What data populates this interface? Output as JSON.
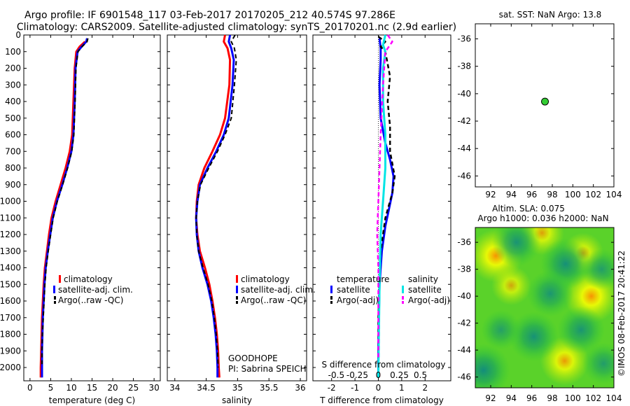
{
  "header": {
    "title_line1": "Argo profile: IF 6901548_117 03-Feb-2017 20170205_212 40.574S 97.286E",
    "title_line2": "Climatology: CARS2009. Satellite-adjusted climatology: synTS_20170201.nc (2.9d earlier)"
  },
  "colors": {
    "climatology": "#ff0000",
    "satellite": "#0000ff",
    "argo": "#000000",
    "sat_salinity": "#00e5e5",
    "argo_salinity_adj": "#ff00ff",
    "float_marker": "#33cc33"
  },
  "legend": {
    "climatology": "climatology",
    "satellite_adj": "satellite-adj. clim.",
    "argo_raw": "Argo(..raw -QC)",
    "temperature_head": "temperature",
    "salinity_head": "salinity",
    "satellite": "satellite",
    "argo_adj": "Argo(-adj)"
  },
  "annotations": {
    "project": "GOODHOPE",
    "pi": "PI: Sabrina SPEICH",
    "s_diff_label": "S difference from climatology",
    "sst_title": "sat. SST: NaN Argo: 13.8",
    "sla_line1": "Altim. SLA: 0.075",
    "sla_line2": "Argo h1000: 0.036 h2000: NaN",
    "credit": "©IMOS 08-Feb-2017 20:41:22"
  },
  "chart_data": [
    {
      "type": "line",
      "xlabel": "temperature (deg C)",
      "ylabel": "",
      "xlim": [
        -1.5,
        31.5
      ],
      "ylim": [
        0,
        2080
      ],
      "y_inverted": true,
      "x_ticks": [
        0,
        5,
        10,
        15,
        20,
        25,
        30
      ],
      "y_ticks": [
        0,
        100,
        200,
        300,
        400,
        500,
        600,
        700,
        800,
        900,
        1000,
        1100,
        1200,
        1300,
        1400,
        1500,
        1600,
        1700,
        1800,
        1900,
        2000
      ],
      "series": [
        {
          "name": "climatology",
          "color": "#ff0000",
          "width": 3,
          "points": [
            [
              13.3,
              40
            ],
            [
              12.0,
              70
            ],
            [
              11.2,
              100
            ],
            [
              10.8,
              200
            ],
            [
              10.5,
              400
            ],
            [
              10.2,
              600
            ],
            [
              9.6,
              700
            ],
            [
              8.6,
              800
            ],
            [
              7.4,
              900
            ],
            [
              6.2,
              1000
            ],
            [
              5.2,
              1100
            ],
            [
              4.6,
              1200
            ],
            [
              4.1,
              1300
            ],
            [
              3.6,
              1400
            ],
            [
              3.3,
              1500
            ],
            [
              3.1,
              1600
            ],
            [
              2.9,
              1700
            ],
            [
              2.8,
              1800
            ],
            [
              2.7,
              1900
            ],
            [
              2.6,
              2000
            ],
            [
              2.6,
              2060
            ]
          ]
        },
        {
          "name": "satellite-adj. clim.",
          "color": "#0000ff",
          "width": 3,
          "points": [
            [
              13.8,
              20
            ],
            [
              13.6,
              40
            ],
            [
              12.5,
              70
            ],
            [
              11.5,
              100
            ],
            [
              11.0,
              200
            ],
            [
              10.8,
              400
            ],
            [
              10.5,
              600
            ],
            [
              10.0,
              700
            ],
            [
              9.0,
              800
            ],
            [
              7.8,
              900
            ],
            [
              6.5,
              1000
            ],
            [
              5.5,
              1100
            ],
            [
              4.9,
              1200
            ],
            [
              4.3,
              1300
            ],
            [
              3.8,
              1400
            ],
            [
              3.5,
              1500
            ],
            [
              3.3,
              1600
            ],
            [
              3.1,
              1700
            ],
            [
              3.0,
              1800
            ],
            [
              2.9,
              1900
            ],
            [
              2.9,
              2000
            ],
            [
              2.9,
              2060
            ]
          ]
        },
        {
          "name": "Argo(..raw -QC)",
          "color": "#000000",
          "width": 2,
          "dashed": true,
          "points": [
            [
              14.0,
              20
            ],
            [
              13.8,
              40
            ],
            [
              12.6,
              70
            ],
            [
              11.6,
              100
            ],
            [
              11.1,
              200
            ],
            [
              10.9,
              400
            ],
            [
              10.6,
              600
            ],
            [
              10.1,
              700
            ],
            [
              9.1,
              800
            ],
            [
              7.9,
              900
            ],
            [
              6.6,
              1000
            ],
            [
              5.6,
              1100
            ],
            [
              5.0,
              1200
            ],
            [
              4.4,
              1300
            ],
            [
              3.9,
              1400
            ],
            [
              3.6,
              1500
            ],
            [
              3.4,
              1600
            ],
            [
              3.2,
              1700
            ],
            [
              3.0,
              1800
            ],
            [
              2.9,
              1900
            ],
            [
              2.9,
              1980
            ]
          ]
        }
      ]
    },
    {
      "type": "line",
      "xlabel": "salinity",
      "ylabel": "",
      "xlim": [
        33.88,
        36.1
      ],
      "ylim": [
        0,
        2080
      ],
      "y_inverted": true,
      "x_ticks": [
        34,
        34.5,
        35,
        35.5,
        36
      ],
      "series": [
        {
          "name": "climatology",
          "color": "#ff0000",
          "width": 3,
          "points": [
            [
              34.8,
              0
            ],
            [
              34.78,
              40
            ],
            [
              34.84,
              80
            ],
            [
              34.88,
              150
            ],
            [
              34.87,
              300
            ],
            [
              34.8,
              500
            ],
            [
              34.72,
              600
            ],
            [
              34.6,
              700
            ],
            [
              34.47,
              800
            ],
            [
              34.38,
              900
            ],
            [
              34.35,
              1000
            ],
            [
              34.34,
              1100
            ],
            [
              34.36,
              1200
            ],
            [
              34.4,
              1300
            ],
            [
              34.48,
              1400
            ],
            [
              34.55,
              1500
            ],
            [
              34.6,
              1600
            ],
            [
              34.64,
              1700
            ],
            [
              34.67,
              1800
            ],
            [
              34.69,
              1900
            ],
            [
              34.7,
              2000
            ],
            [
              34.71,
              2060
            ]
          ]
        },
        {
          "name": "satellite-adj. clim.",
          "color": "#0000ff",
          "width": 3,
          "points": [
            [
              34.88,
              0
            ],
            [
              34.86,
              40
            ],
            [
              34.9,
              80
            ],
            [
              34.94,
              150
            ],
            [
              34.92,
              300
            ],
            [
              34.86,
              500
            ],
            [
              34.78,
              600
            ],
            [
              34.66,
              700
            ],
            [
              34.52,
              800
            ],
            [
              34.4,
              900
            ],
            [
              34.36,
              1000
            ],
            [
              34.34,
              1100
            ],
            [
              34.35,
              1200
            ],
            [
              34.38,
              1300
            ],
            [
              34.44,
              1400
            ],
            [
              34.52,
              1500
            ],
            [
              34.58,
              1600
            ],
            [
              34.62,
              1700
            ],
            [
              34.65,
              1800
            ],
            [
              34.67,
              1900
            ],
            [
              34.68,
              2000
            ],
            [
              34.68,
              2060
            ]
          ]
        },
        {
          "name": "Argo(..raw -QC)",
          "color": "#000000",
          "width": 2,
          "dashed": true,
          "points": [
            [
              34.96,
              0
            ],
            [
              34.9,
              40
            ],
            [
              34.95,
              80
            ],
            [
              34.98,
              150
            ],
            [
              34.95,
              300
            ],
            [
              34.9,
              500
            ],
            [
              34.8,
              600
            ],
            [
              34.68,
              700
            ],
            [
              34.54,
              800
            ],
            [
              34.41,
              900
            ],
            [
              34.36,
              1000
            ],
            [
              34.34,
              1100
            ],
            [
              34.35,
              1200
            ],
            [
              34.38,
              1300
            ],
            [
              34.45,
              1400
            ],
            [
              34.53,
              1500
            ],
            [
              34.59,
              1600
            ],
            [
              34.63,
              1700
            ],
            [
              34.66,
              1800
            ],
            [
              34.68,
              1900
            ],
            [
              34.69,
              2000
            ]
          ]
        }
      ]
    },
    {
      "type": "line",
      "xlabel": "T difference from climatology",
      "ylabel": "",
      "xlim": [
        -2.8,
        3.1
      ],
      "ylim": [
        0,
        2080
      ],
      "y_inverted": true,
      "x_ticks": [
        -2,
        -1,
        0,
        1,
        2
      ],
      "s_ticks": [
        {
          "label": "-0.5",
          "t": -1.8
        },
        {
          "label": "-0.25",
          "t": -0.9
        },
        {
          "label": "0",
          "t": 0
        },
        {
          "label": "0.25",
          "t": 0.9
        },
        {
          "label": "0.5",
          "t": 1.8
        }
      ],
      "series": [
        {
          "name": "temperature satellite",
          "color": "#0000ff",
          "width": 3,
          "points": [
            [
              0.05,
              20
            ],
            [
              0.1,
              80
            ],
            [
              0.1,
              150
            ],
            [
              0.05,
              300
            ],
            [
              0.1,
              500
            ],
            [
              0.3,
              650
            ],
            [
              0.5,
              750
            ],
            [
              0.65,
              850
            ],
            [
              0.6,
              950
            ],
            [
              0.45,
              1050
            ],
            [
              0.3,
              1150
            ],
            [
              0.15,
              1300
            ],
            [
              0.05,
              1500
            ],
            [
              0.02,
              1700
            ],
            [
              0.0,
              1900
            ],
            [
              0.0,
              2060
            ]
          ]
        },
        {
          "name": "temperature Argo(-adj)",
          "color": "#000000",
          "width": 2.5,
          "dashed": true,
          "points": [
            [
              0.0,
              10
            ],
            [
              0.3,
              40
            ],
            [
              0.1,
              70
            ],
            [
              0.3,
              100
            ],
            [
              0.5,
              250
            ],
            [
              0.4,
              400
            ],
            [
              0.5,
              550
            ],
            [
              0.5,
              700
            ],
            [
              0.7,
              850
            ],
            [
              0.6,
              950
            ],
            [
              0.3,
              1100
            ],
            [
              0.1,
              1300
            ],
            [
              0.05,
              1500
            ],
            [
              0.0,
              1700
            ],
            [
              0.0,
              1950
            ]
          ]
        },
        {
          "name": "salinity satellite",
          "color": "#00e5e5",
          "width": 3,
          "points": [
            [
              0.3,
              0
            ],
            [
              0.2,
              60
            ],
            [
              0.3,
              100
            ],
            [
              0.2,
              200
            ],
            [
              0.2,
              400
            ],
            [
              0.3,
              600
            ],
            [
              0.3,
              800
            ],
            [
              0.2,
              1000
            ],
            [
              0.1,
              1200
            ],
            [
              0.05,
              1500
            ],
            [
              0.02,
              1800
            ],
            [
              0.0,
              2060
            ]
          ]
        },
        {
          "name": "salinity Argo(-adj)",
          "color": "#ff00ff",
          "width": 2.5,
          "dashed": true,
          "points": [
            [
              0.4,
              0
            ],
            [
              0.6,
              40
            ],
            [
              0.3,
              100
            ],
            [
              0.2,
              300
            ],
            [
              0.1,
              600
            ],
            [
              0.05,
              800
            ],
            [
              0.0,
              1000
            ],
            [
              -0.05,
              1200
            ],
            [
              0.0,
              1400
            ],
            [
              0.0,
              1700
            ],
            [
              0.0,
              1950
            ]
          ]
        }
      ]
    },
    {
      "type": "scatter",
      "title": "sat. SST: NaN Argo: 13.8",
      "xlim": [
        90.5,
        104
      ],
      "ylim": [
        -46.8,
        -34.9
      ],
      "x_ticks": [
        92,
        94,
        96,
        98,
        100,
        102,
        104
      ],
      "y_ticks": [
        -36,
        -38,
        -40,
        -42,
        -44,
        -46
      ],
      "points": [
        {
          "x": 97.286,
          "y": -40.574
        }
      ]
    },
    {
      "type": "heatmap",
      "title": "Altim. SLA: 0.075",
      "xlim": [
        90.5,
        104
      ],
      "ylim": [
        -46.8,
        -34.9
      ],
      "x_ticks": [
        92,
        94,
        96,
        98,
        100,
        102,
        104
      ],
      "y_ticks": [
        -36,
        -38,
        -40,
        -42,
        -44,
        -46
      ],
      "blobs": [
        {
          "x": 92.5,
          "y": -37.0,
          "v": 1.0
        },
        {
          "x": 101.8,
          "y": -40.0,
          "v": 1.0
        },
        {
          "x": 99.2,
          "y": -44.8,
          "v": 0.8
        },
        {
          "x": 97.0,
          "y": -35.3,
          "v": 0.6
        },
        {
          "x": 94.0,
          "y": -39.2,
          "v": 0.4
        },
        {
          "x": 101.0,
          "y": -36.8,
          "v": 0.45
        },
        {
          "x": 91.3,
          "y": -45.5,
          "v": -1.0
        },
        {
          "x": 99.3,
          "y": -37.6,
          "v": -0.9
        },
        {
          "x": 94.5,
          "y": -36.0,
          "v": -0.8
        },
        {
          "x": 97.8,
          "y": -39.8,
          "v": -0.7
        },
        {
          "x": 96.2,
          "y": -43.0,
          "v": -0.85
        },
        {
          "x": 100.8,
          "y": -42.5,
          "v": -0.75
        },
        {
          "x": 103.0,
          "y": -45.0,
          "v": -0.5
        },
        {
          "x": 93.0,
          "y": -42.5,
          "v": -0.4
        },
        {
          "x": 102.8,
          "y": -38.0,
          "v": -0.45
        }
      ]
    }
  ]
}
